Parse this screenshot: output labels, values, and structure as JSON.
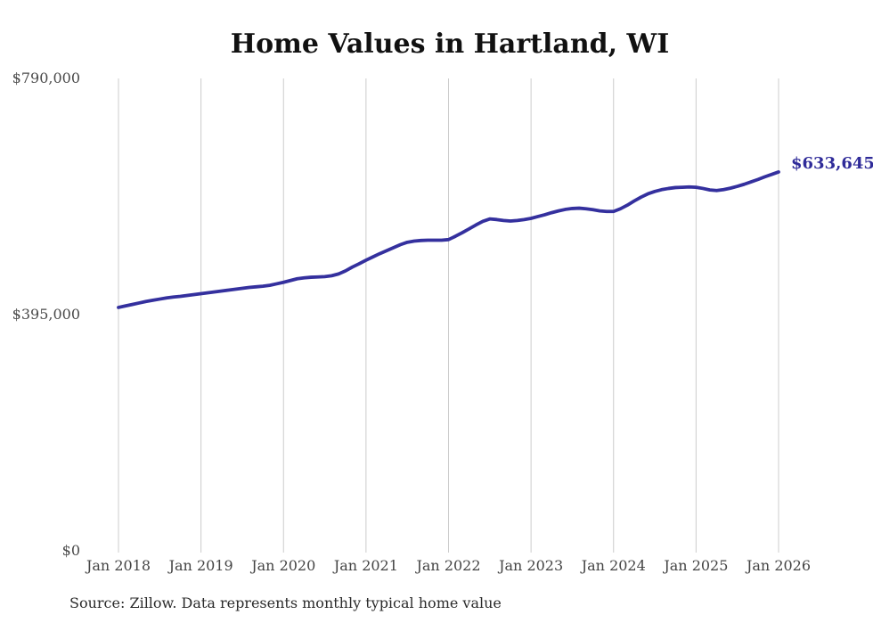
{
  "colors": {
    "background": "#ffffff",
    "line": "#34309e",
    "annotation": "#2f2b99",
    "grid": "#cccccc",
    "axis_text": "#444444",
    "title_text": "#111111",
    "source_text": "#2b2b2b"
  },
  "chart_data": {
    "type": "line",
    "title": "Home Values in Hartland, WI",
    "xlabel": "",
    "ylabel": "",
    "source": "Source: Zillow. Data represents monthly typical home value",
    "annotation": {
      "text": "$633,645",
      "attached_to": "last-point"
    },
    "legend": "none",
    "grid": "vertical-only",
    "ylim": [
      0,
      790000
    ],
    "y_tick_labels": [
      {
        "label": "$790,000",
        "value": 790000
      },
      {
        "label": "$395,000",
        "value": 395000
      },
      {
        "label": "$0",
        "value": 0
      }
    ],
    "x_tick_labels": [
      "Jan 2018",
      "Jan 2019",
      "Jan 2020",
      "Jan 2021",
      "Jan 2022",
      "Jan 2023",
      "Jan 2024",
      "Jan 2025",
      "Jan 2026"
    ],
    "series": [
      {
        "name": "Typical home value",
        "frequency": "monthly",
        "start": "Jan 2018",
        "end": "Jan 2026",
        "values": [
          407000,
          409500,
          412000,
          414500,
          417000,
          419000,
          421000,
          423000,
          424500,
          425500,
          427000,
          428500,
          430000,
          431500,
          433000,
          434500,
          436000,
          437500,
          439000,
          440500,
          441500,
          442500,
          444000,
          446500,
          449000,
          452000,
          455000,
          456500,
          457500,
          458000,
          458500,
          460000,
          463000,
          468000,
          474500,
          480000,
          486000,
          491500,
          497000,
          502000,
          507000,
          512000,
          516000,
          518000,
          519000,
          519500,
          519500,
          519500,
          520500,
          526000,
          532000,
          538500,
          545000,
          551000,
          555000,
          554000,
          552500,
          551500,
          552500,
          554000,
          556000,
          559000,
          562000,
          565500,
          568500,
          571000,
          572500,
          573000,
          572000,
          570500,
          568500,
          567500,
          567500,
          572000,
          578000,
          585000,
          591500,
          597000,
          601000,
          604000,
          606000,
          607500,
          608000,
          608500,
          608000,
          606000,
          603500,
          602500,
          604000,
          606500,
          609500,
          613000,
          617000,
          621000,
          625500,
          629500,
          633645
        ]
      }
    ]
  }
}
